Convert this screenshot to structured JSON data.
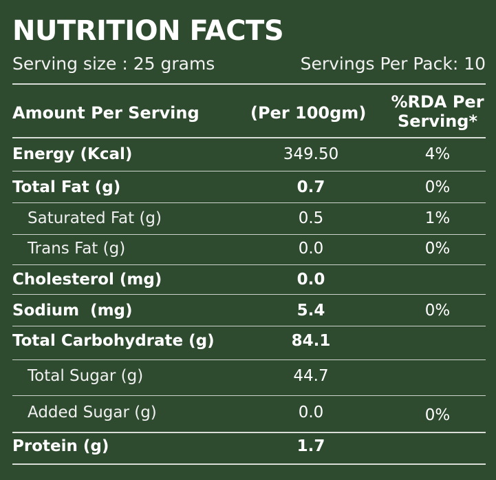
{
  "title": "NUTRITION FACTS",
  "serving_size": "Serving size : 25 grams",
  "servings_per_pack": "Servings Per Pack: 10",
  "columns": {
    "amount": "Amount Per Serving",
    "per100": "(Per 100gm)",
    "rda_line1": "%RDA Per",
    "rda_line2": "Serving*"
  },
  "rows": [
    {
      "name": "Energy (Kcal)",
      "value": "349.50",
      "rda": "4%"
    },
    {
      "name": "Total Fat (g)",
      "value": "0.7",
      "rda": "0%"
    },
    {
      "name": "Saturated Fat (g)",
      "value": "0.5",
      "rda": "1%"
    },
    {
      "name": "Trans Fat (g)",
      "value": "0.0",
      "rda": "0%"
    },
    {
      "name": "Cholesterol (mg)",
      "value": "0.0",
      "rda": ""
    },
    {
      "name": "Sodium  (mg)",
      "value": "5.4",
      "rda": "0%"
    },
    {
      "name": "Total Carbohydrate (g)",
      "value": "84.1",
      "rda": ""
    },
    {
      "name": "Total Sugar (g)",
      "value": "44.7",
      "rda": ""
    },
    {
      "name": "Added Sugar (g)",
      "value": "0.0",
      "rda": "0%"
    },
    {
      "name": "Protein (g)",
      "value": "1.7",
      "rda": ""
    }
  ]
}
